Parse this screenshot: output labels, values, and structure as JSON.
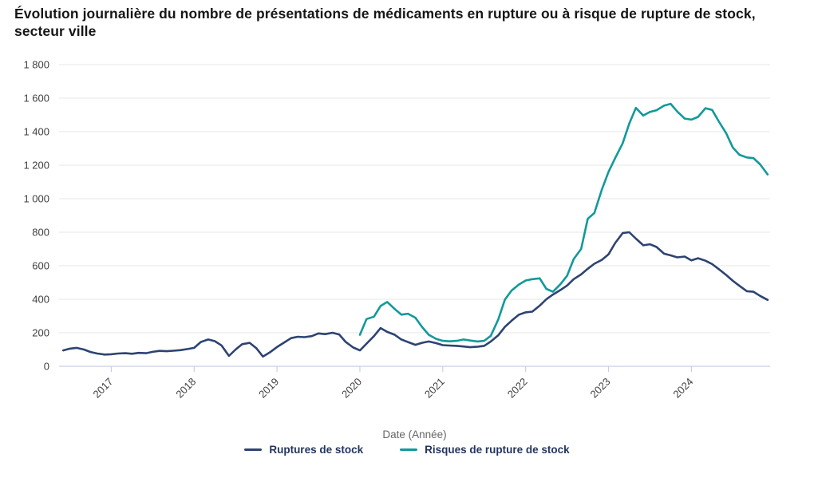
{
  "chart_data": {
    "type": "line",
    "title": "Évolution journalière du nombre de présentations de médicaments en rupture ou à risque de rupture de stock, secteur ville",
    "xlabel": "Date (Année)",
    "ylabel": "",
    "xlim": [
      2016.37,
      2024.95
    ],
    "ylim": [
      0,
      1800
    ],
    "grid": true,
    "legend_position": "bottom",
    "x_ticks": [
      {
        "value": 2017,
        "label": "2017"
      },
      {
        "value": 2018,
        "label": "2018"
      },
      {
        "value": 2019,
        "label": "2019"
      },
      {
        "value": 2020,
        "label": "2020"
      },
      {
        "value": 2021,
        "label": "2021"
      },
      {
        "value": 2022,
        "label": "2022"
      },
      {
        "value": 2023,
        "label": "2023"
      },
      {
        "value": 2024,
        "label": "2024"
      }
    ],
    "y_ticks": [
      {
        "value": 0,
        "label": "0"
      },
      {
        "value": 200,
        "label": "200"
      },
      {
        "value": 400,
        "label": "400"
      },
      {
        "value": 600,
        "label": "600"
      },
      {
        "value": 800,
        "label": "800"
      },
      {
        "value": 1000,
        "label": "1 000"
      },
      {
        "value": 1200,
        "label": "1 200"
      },
      {
        "value": 1400,
        "label": "1 400"
      },
      {
        "value": 1600,
        "label": "1 600"
      },
      {
        "value": 1800,
        "label": "1 800"
      }
    ],
    "series": [
      {
        "id": "ruptures-de-stock",
        "name": "Ruptures de stock",
        "color": "#2d4372",
        "x": [
          2016.42,
          2016.5,
          2016.58,
          2016.67,
          2016.75,
          2016.83,
          2016.92,
          2017.0,
          2017.08,
          2017.17,
          2017.25,
          2017.33,
          2017.42,
          2017.5,
          2017.58,
          2017.67,
          2017.75,
          2017.83,
          2017.92,
          2018.0,
          2018.08,
          2018.17,
          2018.25,
          2018.33,
          2018.42,
          2018.5,
          2018.58,
          2018.67,
          2018.75,
          2018.83,
          2018.92,
          2019.0,
          2019.08,
          2019.17,
          2019.25,
          2019.33,
          2019.42,
          2019.5,
          2019.58,
          2019.67,
          2019.75,
          2019.83,
          2019.92,
          2020.0,
          2020.08,
          2020.17,
          2020.25,
          2020.33,
          2020.42,
          2020.5,
          2020.58,
          2020.67,
          2020.75,
          2020.83,
          2020.92,
          2021.0,
          2021.08,
          2021.17,
          2021.25,
          2021.33,
          2021.42,
          2021.5,
          2021.58,
          2021.67,
          2021.75,
          2021.83,
          2021.92,
          2022.0,
          2022.08,
          2022.17,
          2022.25,
          2022.33,
          2022.42,
          2022.5,
          2022.58,
          2022.67,
          2022.75,
          2022.83,
          2022.92,
          2023.0,
          2023.08,
          2023.17,
          2023.25,
          2023.33,
          2023.42,
          2023.5,
          2023.58,
          2023.67,
          2023.75,
          2023.83,
          2023.92,
          2024.0,
          2024.08,
          2024.17,
          2024.25,
          2024.33,
          2024.42,
          2024.5,
          2024.58,
          2024.67,
          2024.75,
          2024.83,
          2024.92
        ],
        "y": [
          95,
          105,
          110,
          100,
          85,
          76,
          70,
          72,
          76,
          78,
          75,
          80,
          78,
          86,
          92,
          90,
          93,
          96,
          103,
          110,
          145,
          160,
          150,
          125,
          62,
          100,
          132,
          140,
          108,
          58,
          85,
          115,
          140,
          168,
          176,
          174,
          180,
          196,
          192,
          200,
          190,
          145,
          112,
          95,
          135,
          180,
          228,
          205,
          188,
          160,
          145,
          128,
          140,
          148,
          138,
          126,
          124,
          122,
          118,
          114,
          117,
          122,
          148,
          185,
          235,
          272,
          308,
          322,
          326,
          362,
          400,
          428,
          455,
          482,
          520,
          548,
          582,
          612,
          635,
          668,
          735,
          795,
          800,
          762,
          722,
          728,
          712,
          672,
          662,
          650,
          655,
          632,
          645,
          630,
          610,
          580,
          545,
          510,
          480,
          448,
          445,
          420,
          396
        ]
      },
      {
        "id": "risques-de-rupture-de-stock",
        "name": "Risques de rupture de stock",
        "color": "#12999b",
        "x": [
          2020.0,
          2020.08,
          2020.17,
          2020.25,
          2020.33,
          2020.42,
          2020.5,
          2020.58,
          2020.67,
          2020.75,
          2020.83,
          2020.92,
          2021.0,
          2021.08,
          2021.17,
          2021.25,
          2021.33,
          2021.42,
          2021.5,
          2021.58,
          2021.67,
          2021.75,
          2021.83,
          2021.92,
          2022.0,
          2022.08,
          2022.17,
          2022.25,
          2022.33,
          2022.42,
          2022.5,
          2022.58,
          2022.67,
          2022.75,
          2022.83,
          2022.92,
          2023.0,
          2023.08,
          2023.17,
          2023.25,
          2023.33,
          2023.42,
          2023.5,
          2023.58,
          2023.67,
          2023.75,
          2023.83,
          2023.92,
          2024.0,
          2024.08,
          2024.17,
          2024.25,
          2024.33,
          2024.42,
          2024.5,
          2024.58,
          2024.67,
          2024.75,
          2024.83,
          2024.92
        ],
        "y": [
          188,
          282,
          296,
          360,
          384,
          342,
          308,
          314,
          290,
          235,
          188,
          164,
          152,
          149,
          152,
          160,
          154,
          148,
          152,
          182,
          280,
          398,
          452,
          488,
          512,
          520,
          525,
          462,
          445,
          490,
          540,
          640,
          700,
          880,
          915,
          1055,
          1160,
          1242,
          1330,
          1448,
          1542,
          1496,
          1518,
          1528,
          1555,
          1566,
          1520,
          1478,
          1472,
          1488,
          1540,
          1530,
          1462,
          1390,
          1305,
          1262,
          1246,
          1242,
          1205,
          1145
        ]
      }
    ]
  },
  "legend": {
    "items": [
      {
        "label": "Ruptures de stock",
        "color": "#2d4372"
      },
      {
        "label": "Risques de rupture de stock",
        "color": "#12999b"
      }
    ]
  },
  "colors": {
    "grid": "#ececec",
    "axis": "#c7d0e8",
    "tick_label": "#3f3f3f",
    "axis_label": "#666666",
    "title": "#161616",
    "legend_text": "#22365e",
    "background": "#ffffff"
  }
}
